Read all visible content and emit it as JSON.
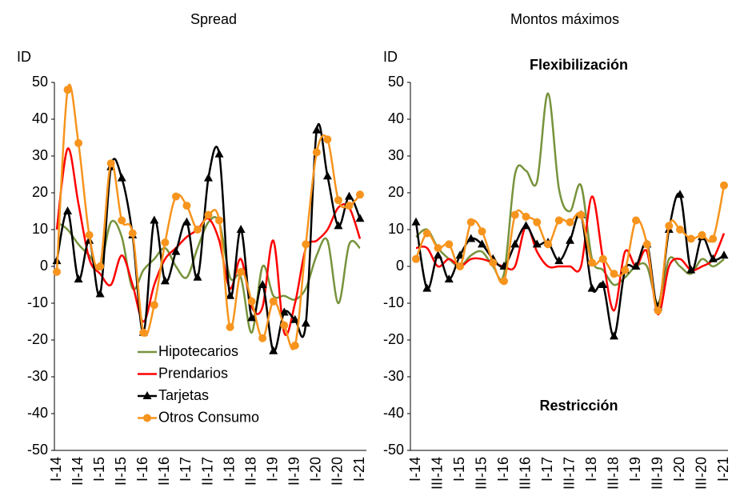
{
  "chart_data": [
    {
      "type": "line",
      "title": "Spread",
      "y_label": "ID",
      "categories": [
        "I-14",
        null,
        "II-14",
        null,
        "I-15",
        null,
        "II-15",
        null,
        "I-16",
        null,
        "II-16",
        null,
        "I-17",
        null,
        "II-17",
        null,
        "I-18",
        null,
        "II-18",
        null,
        "I-19",
        null,
        "II-19",
        null,
        "I-20",
        null,
        "II-20",
        null,
        "I-21"
      ],
      "ylim": [
        -50,
        50
      ],
      "yticks": [
        -50,
        -40,
        -30,
        -20,
        -10,
        0,
        10,
        20,
        30,
        40,
        50
      ],
      "legend": "lower left",
      "series": [
        {
          "name": "Hipotecarios",
          "color": "#77933c",
          "values": [
            12,
            10,
            6,
            3,
            0,
            12,
            8,
            -6,
            -1,
            2,
            5,
            0,
            -3,
            5,
            12,
            12,
            -3,
            -3,
            -18,
            0,
            -8,
            -8,
            -9,
            -6,
            3,
            7,
            -10,
            6,
            5
          ]
        },
        {
          "name": "Prendarios",
          "color": "#ff0000",
          "values": [
            10,
            32,
            17,
            2,
            -2,
            -5,
            3,
            -5,
            -15,
            -5,
            2,
            5,
            8,
            10,
            13,
            7,
            -6,
            2,
            -11,
            -11,
            7,
            -18,
            -10,
            5,
            7,
            10,
            16,
            16,
            7.5
          ]
        },
        {
          "name": "Tarjetas",
          "color": "#000000",
          "marker": "triangle",
          "values": [
            1.5,
            15,
            -3.5,
            7,
            -7.5,
            27,
            24,
            8.5,
            -18,
            12.5,
            -4,
            4,
            12,
            -3,
            24,
            30.5,
            -8,
            10,
            -14,
            -5,
            -23,
            -12.5,
            -14.5,
            -15.5,
            37,
            24.5,
            11,
            19,
            13
          ]
        },
        {
          "name": "Otros Consumo",
          "color": "#f7941d",
          "marker": "circle",
          "values": [
            -1.5,
            48,
            33.5,
            8.5,
            0,
            28,
            12.5,
            9,
            -18,
            -10.5,
            6.5,
            19,
            16.5,
            10,
            14,
            12.5,
            -16.5,
            -1.5,
            -9.5,
            -19.5,
            -9.5,
            -16,
            -21.5,
            6,
            31,
            34.5,
            18,
            16.5,
            19.5
          ]
        }
      ]
    },
    {
      "type": "line",
      "title": "Montos máximos",
      "y_label": "ID",
      "categories": [
        "I-14",
        null,
        "III-14",
        null,
        "I-15",
        null,
        "III-15",
        null,
        "I-16",
        null,
        "III-16",
        null,
        "I-17",
        null,
        "III-17",
        null,
        "I-18",
        null,
        "III-18",
        null,
        "I-19",
        null,
        "III-19",
        null,
        "I-20",
        null,
        "III-20",
        null,
        "I-21"
      ],
      "ylim": [
        -50,
        50
      ],
      "yticks": [
        -50,
        -40,
        -30,
        -20,
        -10,
        0,
        10,
        20,
        30,
        40,
        50
      ],
      "annotations": [
        "Flexibilización",
        "Restricción"
      ],
      "series": [
        {
          "color": "#77933c",
          "values": [
            8,
            10,
            5,
            2,
            0,
            3,
            4,
            0,
            -2,
            25,
            26,
            23,
            47,
            21,
            15,
            22,
            2,
            -1,
            -5,
            -3,
            0,
            0,
            -10,
            2,
            0,
            -2,
            2,
            0,
            2
          ]
        },
        {
          "color": "#ff0000",
          "values": [
            5,
            5,
            0,
            2,
            0,
            2,
            2,
            1,
            0,
            0,
            11,
            4,
            0,
            0,
            0,
            0,
            19,
            2,
            -12,
            4,
            0,
            4,
            -13,
            0,
            2,
            -1,
            0,
            2,
            9
          ]
        },
        {
          "color": "#000000",
          "marker": "triangle",
          "values": [
            12,
            -6,
            3,
            -3.5,
            3,
            7.5,
            6,
            2,
            0,
            6,
            11,
            6,
            6.5,
            1.5,
            7,
            14,
            -6,
            -5,
            -19,
            -1,
            0,
            6,
            -11,
            10,
            19.5,
            -1,
            8,
            2,
            3
          ]
        },
        {
          "color": "#f7941d",
          "marker": "circle",
          "values": [
            2,
            9,
            5,
            6,
            0,
            12,
            9.5,
            1,
            -4,
            14,
            13.5,
            12,
            6,
            12.5,
            12,
            14,
            1,
            2,
            -2,
            -1,
            12.5,
            6,
            -12,
            11,
            10,
            7.5,
            8.5,
            7.5,
            22
          ]
        }
      ]
    }
  ]
}
